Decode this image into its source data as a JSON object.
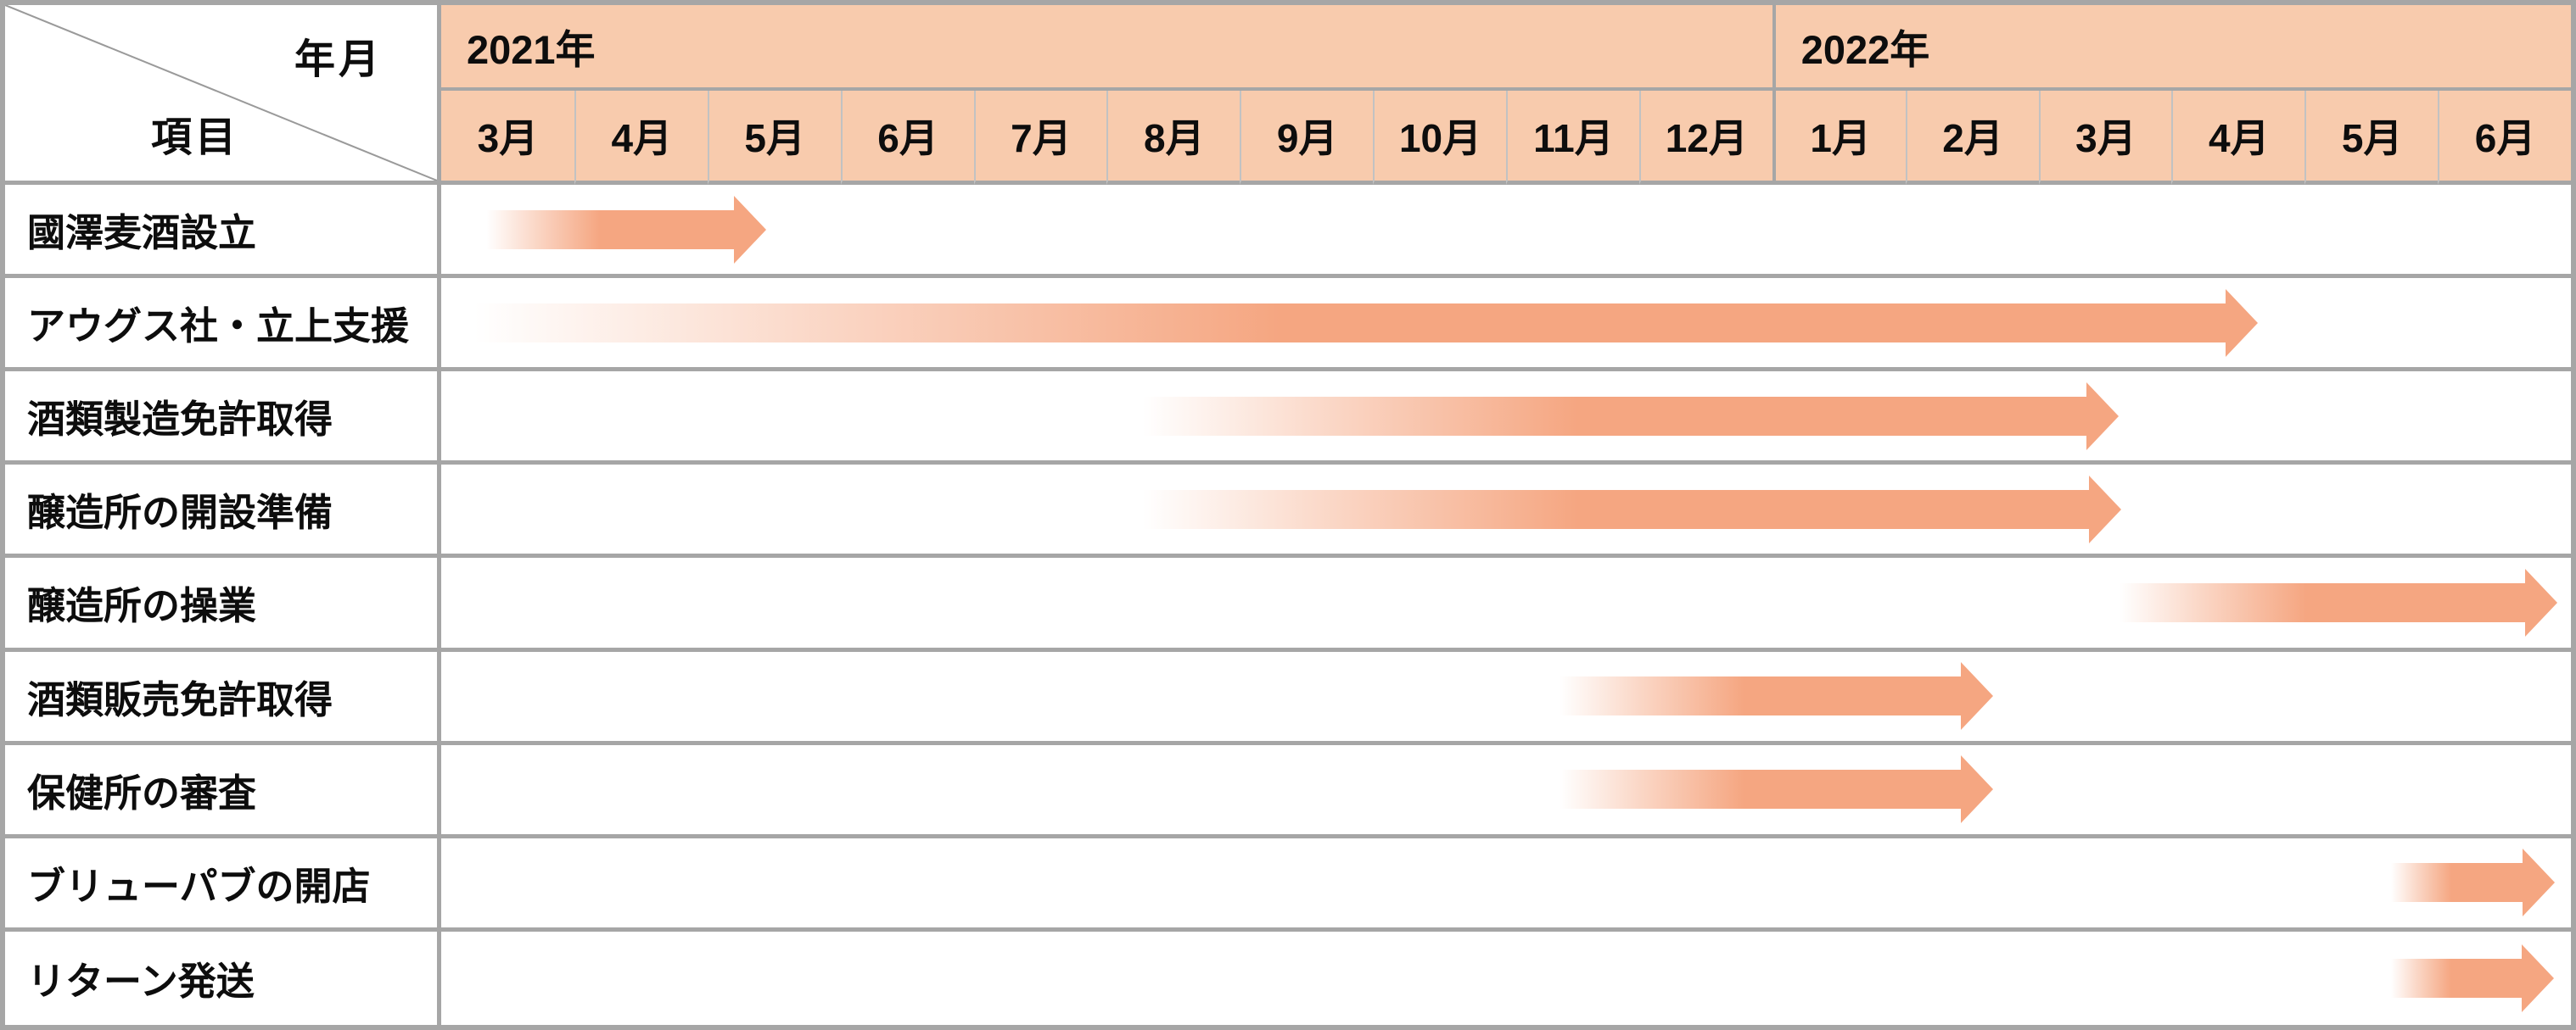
{
  "chart_data": {
    "type": "gantt",
    "axis": {
      "corner_top_right": "年月",
      "corner_bottom_left": "項目",
      "year_groups": [
        {
          "label": "2021年",
          "months_span": 10
        },
        {
          "label": "2022年",
          "months_span": 6
        }
      ],
      "month_labels": [
        "3月",
        "4月",
        "5月",
        "6月",
        "7月",
        "8月",
        "9月",
        "10月",
        "11月",
        "12月",
        "1月",
        "2月",
        "3月",
        "4月",
        "5月",
        "6月"
      ],
      "timeline_start": "2021-03",
      "timeline_end": "2022-06",
      "units": "month index, 0 = 2021年3月, 15 = 2022年6月, fractional within month",
      "total_months": 16
    },
    "tasks": [
      {
        "label": "國澤麦酒設立",
        "start_month": "2021-03",
        "end_month": "2021-05",
        "start": 0.34,
        "end": 2.44
      },
      {
        "label": "アウグス社・立上支援",
        "start_month": "2021-03",
        "end_month": "2022-04",
        "start": 0.25,
        "end": 13.65
      },
      {
        "label": "酒類製造免許取得",
        "start_month": "2021-08",
        "end_month": "2022-03",
        "start": 5.27,
        "end": 12.6
      },
      {
        "label": "醸造所の開設準備",
        "start_month": "2021-08",
        "end_month": "2022-03",
        "start": 5.27,
        "end": 12.62
      },
      {
        "label": "醸造所の操業",
        "start_month": "2022-03",
        "end_month": "2022-06",
        "start": 12.61,
        "end": 15.9
      },
      {
        "label": "酒類販売免許取得",
        "start_month": "2021-11",
        "end_month": "2022-02",
        "start": 8.4,
        "end": 11.66
      },
      {
        "label": "保健所の審査",
        "start_month": "2021-11",
        "end_month": "2022-02",
        "start": 8.4,
        "end": 11.66
      },
      {
        "label": "ブリューパブの開店",
        "start_month": "2022-05",
        "end_month": "2022-06",
        "start": 14.65,
        "end": 15.88
      },
      {
        "label": "リターン発送",
        "start_month": "2022-05",
        "end_month": "2022-06",
        "start": 14.65,
        "end": 15.87
      }
    ]
  },
  "colors": {
    "header_fill": "#F8CBAD",
    "arrow": "#F5A681",
    "border_major": "#A6A6A6",
    "border_minor": "#C2C2C2",
    "text": "#0D0D0D",
    "background": "#FFFFFF"
  }
}
